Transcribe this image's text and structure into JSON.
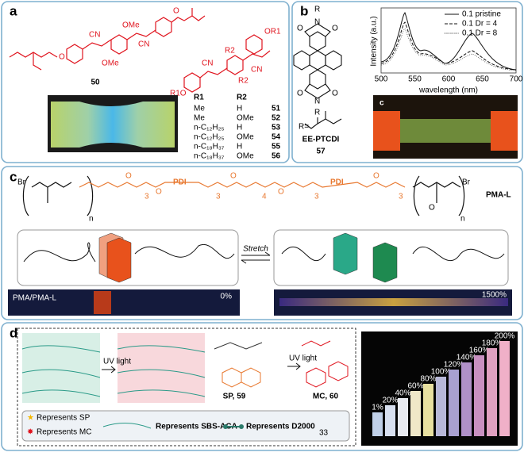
{
  "panels": {
    "a": {
      "label": "a",
      "structure_50": {
        "atoms": [
          "O",
          "CN",
          "OMe",
          "OMe",
          "CN",
          "O"
        ],
        "name": "50"
      },
      "structure_general": {
        "atoms": [
          "CN",
          "R2",
          "R2",
          "CN",
          "OR1",
          "R1O"
        ]
      },
      "table": {
        "header": [
          "R1",
          "R2"
        ],
        "rows": [
          [
            "Me",
            "H",
            "51"
          ],
          [
            "Me",
            "OMe",
            "52"
          ],
          [
            "n-C₁₂H₂₅",
            "H",
            "53"
          ],
          [
            "n-C₁₂H₂₅",
            "OMe",
            "54"
          ],
          [
            "n-C₁₈H₃₇",
            "H",
            "55"
          ],
          [
            "n-C₁₈H₃₇",
            "OMe",
            "56"
          ]
        ]
      }
    },
    "b": {
      "label": "b",
      "structure": {
        "atoms": [
          "R",
          "N",
          "O",
          "O",
          "O",
          "O",
          "N",
          "R"
        ],
        "r_def": "R=",
        "name": "EE-PTCDI",
        "number": "57"
      },
      "spectrum": {
        "y_label": "Intensity (a.u.)",
        "x_label": "wavelength (nm)",
        "xticks": [
          "500",
          "550",
          "600",
          "650",
          "700"
        ],
        "legend": [
          "0.1 pristine",
          "0.1 Dr = 4",
          "0.1 Dr = 8"
        ]
      },
      "photo_label": "c"
    },
    "c": {
      "label": "c",
      "structure": {
        "atoms": [
          "Br",
          "O",
          "O",
          "PDI",
          "O",
          "O",
          "PDI",
          "O",
          "O",
          "Br"
        ],
        "subscripts": [
          "n",
          "3",
          "3",
          "4",
          "3",
          "3",
          "n"
        ],
        "name": "PMA-L"
      },
      "stretch": "Stretch",
      "left_caption": "PMA/PMA-L",
      "left_strain": "0%",
      "right_strain": "1500%"
    },
    "d": {
      "label": "d",
      "step1": "UV light",
      "step2": "UV light",
      "sp": "SP, 59",
      "mc": "MC, 60",
      "legend": [
        "Represents SP",
        "Represents MC",
        "Represents SBS-ACA",
        "Represents D2000"
      ],
      "d2000_subscript": "33",
      "strains": [
        "1%",
        "20%",
        "40%",
        "60%",
        "80%",
        "100%",
        "120%",
        "140%",
        "160%",
        "180%",
        "200%"
      ]
    }
  }
}
